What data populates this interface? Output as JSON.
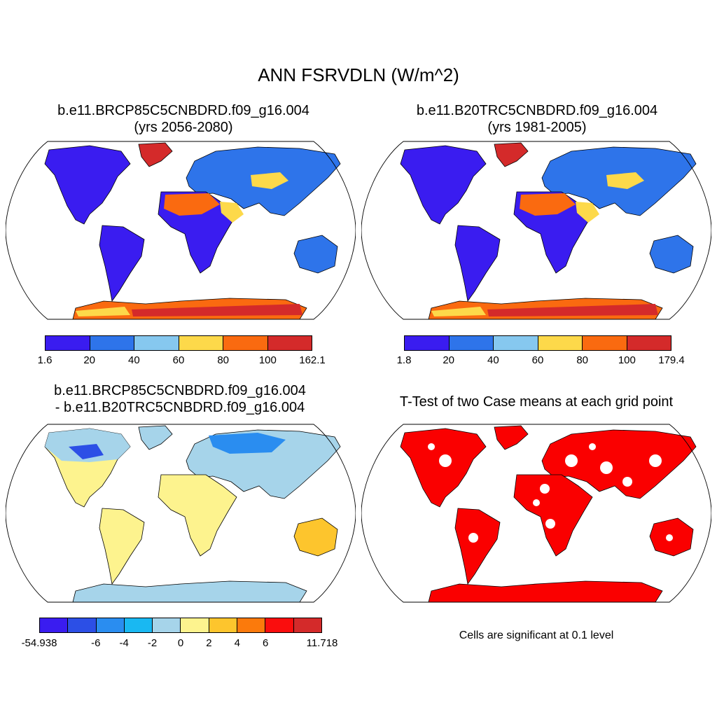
{
  "title": "ANN FSRVDLN (W/m^2)",
  "panels": [
    {
      "id": "case1",
      "title_line1": "b.e11.BRCP85C5CNBDRD.f09_g16.004",
      "title_line2": "(yrs 2056-2080)",
      "colorbar": {
        "labels": [
          "1.6",
          "20",
          "40",
          "60",
          "80",
          "100",
          "162.1"
        ],
        "colors": [
          "#3a1cf0",
          "#2e74ea",
          "#86c8ef",
          "#fdd94a",
          "#fa6a10",
          "#d42a2a"
        ]
      }
    },
    {
      "id": "case2",
      "title_line1": "b.e11.B20TRC5CNBDRD.f09_g16.004",
      "title_line2": "(yrs 1981-2005)",
      "colorbar": {
        "labels": [
          "1.8",
          "20",
          "40",
          "60",
          "80",
          "100",
          "179.4"
        ],
        "colors": [
          "#3a1cf0",
          "#2e74ea",
          "#86c8ef",
          "#fdd94a",
          "#fa6a10",
          "#d42a2a"
        ]
      }
    },
    {
      "id": "diff",
      "title_line1": "b.e11.BRCP85C5CNBDRD.f09_g16.004",
      "title_line2": "- b.e11.B20TRC5CNBDRD.f09_g16.004",
      "colorbar": {
        "labels": [
          "-54.938",
          "-6",
          "-4",
          "-2",
          "0",
          "2",
          "4",
          "6",
          "11.718"
        ],
        "colors": [
          "#3a1cf0",
          "#2c4fe6",
          "#2a8df0",
          "#19b8f2",
          "#a6d4ea",
          "#fdf38e",
          "#fdc52d",
          "#fb7a0c",
          "#fa0d0d",
          "#d42a2a"
        ]
      }
    },
    {
      "id": "ttest",
      "title_line1": "T-Test of two Case means at each grid point",
      "note": "Cells are significant at 0.1 level",
      "significance_color": "#fa0000"
    }
  ],
  "colors": {
    "outline": "#000000",
    "land_case": "#3a1cf0",
    "sahara": "#fa6a10",
    "antarctica_case": "#d42a2a",
    "land_diff": "#fdf38e",
    "land_diff_north": "#86c8ef"
  }
}
